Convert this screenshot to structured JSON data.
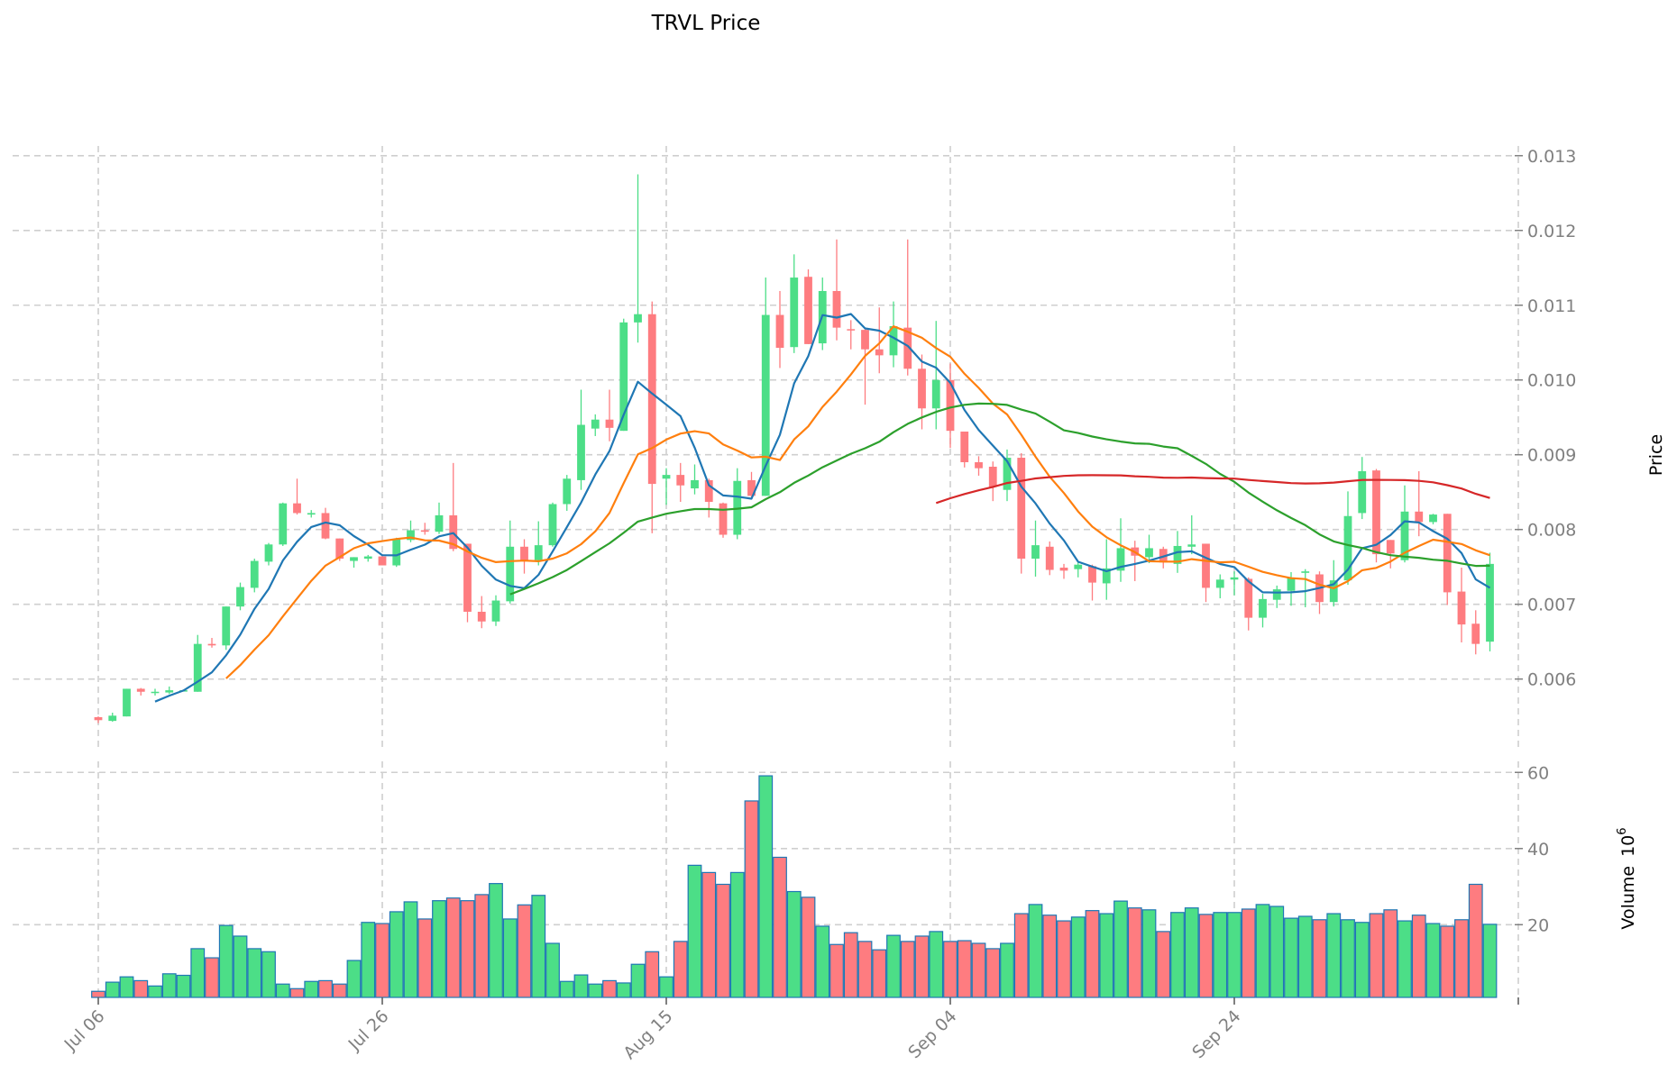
{
  "chart_data": {
    "type": "candlestick",
    "title": "TRVL Price",
    "ylabel_price": "Price",
    "ylabel_volume": "Volume",
    "volume_multiplier_base": "10",
    "volume_multiplier_exp": "6",
    "x_start": "Jul 06",
    "x_frequency": "daily",
    "x_tick_labels": [
      "Jul 06",
      "Jul 26",
      "Aug 15",
      "Sep 04",
      "Sep 24"
    ],
    "x_tick_index": [
      0,
      20,
      40,
      60,
      80,
      100
    ],
    "price_ticks": [
      "0.006",
      "0.007",
      "0.008",
      "0.009",
      "0.010",
      "0.011",
      "0.012",
      "0.013"
    ],
    "volume_ticks": [
      "20",
      "40",
      "60"
    ],
    "price_ylim": [
      0.00508,
      0.01313
    ],
    "volume_ylim": [
      0.9,
      62.9
    ],
    "grid": true,
    "colors": {
      "up": "#4cde87",
      "down": "#fe7c80",
      "volume_edge": "#1f77b4"
    },
    "moving_averages": [
      {
        "window": 5,
        "color": "#1f77b4"
      },
      {
        "window": 10,
        "color": "#ff7f0e"
      },
      {
        "window": 30,
        "color": "#2ca02c"
      },
      {
        "window": 60,
        "color": "#d62728"
      }
    ],
    "ohlc_fields": [
      "open",
      "high",
      "low",
      "close"
    ],
    "ohlc": [
      [
        0.00549,
        0.0055,
        0.00541,
        0.00545
      ],
      [
        0.00544,
        0.00555,
        0.00543,
        0.00551
      ],
      [
        0.0055,
        0.00587,
        0.0055,
        0.00587
      ],
      [
        0.00587,
        0.00588,
        0.00578,
        0.00583
      ],
      [
        0.00582,
        0.00587,
        0.00578,
        0.00583
      ],
      [
        0.00582,
        0.0059,
        0.0058,
        0.00585
      ],
      [
        0.00585,
        0.00586,
        0.00584,
        0.00585
      ],
      [
        0.00583,
        0.00659,
        0.00583,
        0.00647
      ],
      [
        0.00647,
        0.00655,
        0.00642,
        0.00645
      ],
      [
        0.00645,
        0.00697,
        0.00639,
        0.00697
      ],
      [
        0.00697,
        0.00729,
        0.00692,
        0.00723
      ],
      [
        0.00722,
        0.00761,
        0.00716,
        0.00758
      ],
      [
        0.00757,
        0.00782,
        0.00752,
        0.0078
      ],
      [
        0.0078,
        0.00836,
        0.00778,
        0.00835
      ],
      [
        0.00835,
        0.00868,
        0.0082,
        0.00822
      ],
      [
        0.0082,
        0.00826,
        0.00816,
        0.00822
      ],
      [
        0.00822,
        0.00829,
        0.00787,
        0.00788
      ],
      [
        0.00788,
        0.00788,
        0.00758,
        0.00761
      ],
      [
        0.00758,
        0.00763,
        0.00749,
        0.00763
      ],
      [
        0.00761,
        0.00766,
        0.00757,
        0.00764
      ],
      [
        0.00764,
        0.00767,
        0.00752,
        0.00752
      ],
      [
        0.00752,
        0.00789,
        0.0075,
        0.00787
      ],
      [
        0.00786,
        0.00812,
        0.00783,
        0.00799
      ],
      [
        0.00799,
        0.00809,
        0.00793,
        0.00797
      ],
      [
        0.00797,
        0.00836,
        0.00794,
        0.00819
      ],
      [
        0.00819,
        0.00889,
        0.00771,
        0.00774
      ],
      [
        0.00781,
        0.00781,
        0.00676,
        0.0069
      ],
      [
        0.0069,
        0.00711,
        0.00668,
        0.00677
      ],
      [
        0.00677,
        0.00712,
        0.00671,
        0.00705
      ],
      [
        0.00704,
        0.00812,
        0.00701,
        0.00777
      ],
      [
        0.00777,
        0.00787,
        0.00741,
        0.00759
      ],
      [
        0.00759,
        0.00811,
        0.00752,
        0.00779
      ],
      [
        0.00779,
        0.00836,
        0.00777,
        0.00834
      ],
      [
        0.00834,
        0.00873,
        0.00825,
        0.00868
      ],
      [
        0.00866,
        0.00987,
        0.00853,
        0.0094
      ],
      [
        0.00935,
        0.00954,
        0.00925,
        0.00947
      ],
      [
        0.00947,
        0.00987,
        0.00918,
        0.00936
      ],
      [
        0.00932,
        0.01082,
        0.00932,
        0.01077
      ],
      [
        0.01077,
        0.01275,
        0.0105,
        0.01088
      ],
      [
        0.01088,
        0.01105,
        0.00795,
        0.00861
      ],
      [
        0.00868,
        0.00882,
        0.00833,
        0.00873
      ],
      [
        0.00873,
        0.00889,
        0.00837,
        0.00859
      ],
      [
        0.00855,
        0.00887,
        0.00847,
        0.00866
      ],
      [
        0.00866,
        0.00868,
        0.00816,
        0.00837
      ],
      [
        0.00835,
        0.00836,
        0.00789,
        0.00793
      ],
      [
        0.00793,
        0.00882,
        0.00787,
        0.00865
      ],
      [
        0.00866,
        0.00877,
        0.00843,
        0.00845
      ],
      [
        0.00845,
        0.01137,
        0.00845,
        0.01087
      ],
      [
        0.01087,
        0.01119,
        0.01016,
        0.01043
      ],
      [
        0.01044,
        0.01168,
        0.01036,
        0.01137
      ],
      [
        0.01138,
        0.01148,
        0.01048,
        0.01048
      ],
      [
        0.01049,
        0.01137,
        0.0104,
        0.01119
      ],
      [
        0.01119,
        0.01188,
        0.01053,
        0.0107
      ],
      [
        0.01068,
        0.0108,
        0.01041,
        0.01067
      ],
      [
        0.01067,
        0.0107,
        0.00967,
        0.01041
      ],
      [
        0.01041,
        0.01097,
        0.01009,
        0.01033
      ],
      [
        0.01033,
        0.01105,
        0.01017,
        0.01072
      ],
      [
        0.0107,
        0.01188,
        0.01006,
        0.01015
      ],
      [
        0.01015,
        0.01034,
        0.00934,
        0.00962
      ],
      [
        0.00962,
        0.01079,
        0.00934,
        0.01
      ],
      [
        0.01,
        0.01022,
        0.00909,
        0.00932
      ],
      [
        0.00931,
        0.00931,
        0.00883,
        0.0089
      ],
      [
        0.0089,
        0.00898,
        0.00872,
        0.00882
      ],
      [
        0.00884,
        0.00891,
        0.00838,
        0.00857
      ],
      [
        0.00853,
        0.00907,
        0.00838,
        0.00896
      ],
      [
        0.00896,
        0.00902,
        0.00741,
        0.00761
      ],
      [
        0.00761,
        0.00812,
        0.00737,
        0.00779
      ],
      [
        0.00777,
        0.00784,
        0.00739,
        0.00746
      ],
      [
        0.00749,
        0.00754,
        0.00734,
        0.00745
      ],
      [
        0.00747,
        0.00758,
        0.00736,
        0.00753
      ],
      [
        0.00751,
        0.00753,
        0.00705,
        0.00729
      ],
      [
        0.00728,
        0.00787,
        0.00706,
        0.00748
      ],
      [
        0.00745,
        0.00815,
        0.0073,
        0.00775
      ],
      [
        0.00776,
        0.00785,
        0.00731,
        0.00765
      ],
      [
        0.00763,
        0.00793,
        0.00755,
        0.00775
      ],
      [
        0.00774,
        0.00777,
        0.00748,
        0.00756
      ],
      [
        0.00754,
        0.00798,
        0.00742,
        0.00778
      ],
      [
        0.00777,
        0.00819,
        0.00767,
        0.0078
      ],
      [
        0.00781,
        0.00781,
        0.00703,
        0.00722
      ],
      [
        0.00722,
        0.0074,
        0.00708,
        0.00733
      ],
      [
        0.00733,
        0.00744,
        0.00712,
        0.00736
      ],
      [
        0.00734,
        0.00736,
        0.00665,
        0.00682
      ],
      [
        0.00682,
        0.00714,
        0.00669,
        0.00707
      ],
      [
        0.00706,
        0.00725,
        0.00695,
        0.0072
      ],
      [
        0.00718,
        0.00743,
        0.00698,
        0.00735
      ],
      [
        0.00742,
        0.00747,
        0.00696,
        0.00744
      ],
      [
        0.0074,
        0.00744,
        0.00687,
        0.00703
      ],
      [
        0.00703,
        0.00759,
        0.00697,
        0.00732
      ],
      [
        0.00732,
        0.00851,
        0.00726,
        0.00818
      ],
      [
        0.00822,
        0.00897,
        0.00814,
        0.00878
      ],
      [
        0.00879,
        0.00881,
        0.00756,
        0.00767
      ],
      [
        0.00786,
        0.00786,
        0.00748,
        0.00768
      ],
      [
        0.00759,
        0.00859,
        0.00756,
        0.00824
      ],
      [
        0.00824,
        0.00878,
        0.00791,
        0.0081
      ],
      [
        0.0081,
        0.00821,
        0.00807,
        0.0082
      ],
      [
        0.00821,
        0.00821,
        0.00699,
        0.00716
      ],
      [
        0.00717,
        0.00749,
        0.00649,
        0.00673
      ],
      [
        0.00674,
        0.00692,
        0.00633,
        0.00647
      ],
      [
        0.0065,
        0.00769,
        0.00637,
        0.00754
      ]
    ],
    "volume": [
      2.5,
      4.9,
      6.3,
      5.3,
      3.9,
      7.1,
      6.7,
      13.7,
      11.3,
      19.8,
      17.0,
      13.7,
      12.9,
      4.4,
      3.2,
      5.1,
      5.3,
      4.4,
      10.6,
      20.6,
      20.3,
      23.4,
      26.0,
      21.5,
      26.3,
      27.0,
      26.3,
      27.9,
      30.8,
      21.5,
      25.2,
      27.7,
      15.1,
      5.1,
      6.8,
      4.4,
      5.3,
      4.7,
      9.6,
      12.9,
      6.3,
      15.6,
      35.6,
      33.7,
      30.6,
      33.7,
      52.5,
      59.1,
      37.7,
      28.7,
      27.2,
      19.6,
      14.8,
      17.9,
      15.6,
      13.4,
      17.2,
      15.6,
      17.0,
      18.2,
      15.6,
      15.8,
      15.1,
      13.7,
      15.1,
      22.9,
      25.3,
      22.5,
      21.0,
      22.0,
      23.7,
      22.9,
      26.2,
      24.4,
      23.9,
      18.2,
      23.2,
      24.4,
      22.7,
      23.2,
      23.2,
      24.1,
      25.3,
      24.8,
      21.7,
      22.2,
      21.3,
      22.9,
      21.3,
      20.6,
      22.9,
      23.9,
      21.0,
      22.5,
      20.3,
      19.6,
      21.3,
      30.6,
      20.1
    ]
  }
}
